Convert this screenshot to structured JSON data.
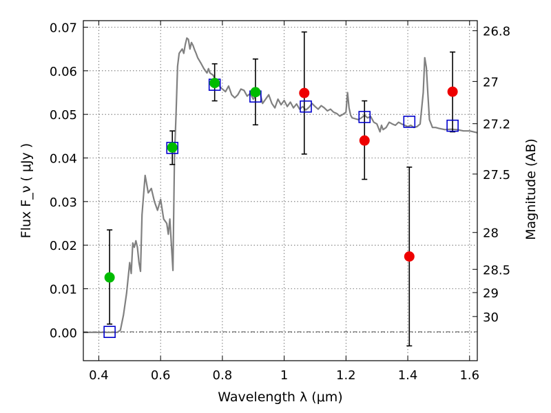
{
  "chart_data": {
    "type": "scatter",
    "xlabel": "Wavelength  λ (μm)",
    "ylabel": "Flux  F_ν  ( μJy )",
    "ylabel_right": "Magnitude (AB)",
    "xlim": [
      0.35,
      1.625
    ],
    "ylim": [
      -0.0065,
      0.0715
    ],
    "grid": true,
    "x_ticks": [
      {
        "value": 0.4,
        "label": "0.4"
      },
      {
        "value": 0.6,
        "label": "0.6"
      },
      {
        "value": 0.8,
        "label": "0.8"
      },
      {
        "value": 1.0,
        "label": "1"
      },
      {
        "value": 1.2,
        "label": "1.2"
      },
      {
        "value": 1.4,
        "label": "1.4"
      },
      {
        "value": 1.6,
        "label": "1.6"
      }
    ],
    "y_ticks": [
      {
        "value": 0.0,
        "label": "0.00"
      },
      {
        "value": 0.01,
        "label": "0.01"
      },
      {
        "value": 0.02,
        "label": "0.02"
      },
      {
        "value": 0.03,
        "label": "0.03"
      },
      {
        "value": 0.04,
        "label": "0.04"
      },
      {
        "value": 0.05,
        "label": "0.05"
      },
      {
        "value": 0.06,
        "label": "0.06"
      },
      {
        "value": 0.07,
        "label": "0.07"
      }
    ],
    "magnitude_ticks": [
      {
        "mag": 26.8,
        "label": "26.8"
      },
      {
        "mag": 27.0,
        "label": "27"
      },
      {
        "mag": 27.2,
        "label": "27.2"
      },
      {
        "mag": 27.5,
        "label": "27.5"
      },
      {
        "mag": 28.0,
        "label": "28"
      },
      {
        "mag": 28.5,
        "label": "28.5"
      },
      {
        "mag": 29.0,
        "label": "29"
      },
      {
        "mag": 30.0,
        "label": "30"
      }
    ],
    "model_spectrum": {
      "color": "#808080",
      "points": [
        [
          0.35,
          0.0
        ],
        [
          0.4,
          0.0
        ],
        [
          0.45,
          0.0
        ],
        [
          0.46,
          0.0
        ],
        [
          0.47,
          0.0005
        ],
        [
          0.48,
          0.004
        ],
        [
          0.49,
          0.009
        ],
        [
          0.5,
          0.016
        ],
        [
          0.505,
          0.0135
        ],
        [
          0.51,
          0.0205
        ],
        [
          0.515,
          0.0195
        ],
        [
          0.52,
          0.021
        ],
        [
          0.525,
          0.0195
        ],
        [
          0.53,
          0.016
        ],
        [
          0.535,
          0.014
        ],
        [
          0.54,
          0.027
        ],
        [
          0.55,
          0.036
        ],
        [
          0.555,
          0.034
        ],
        [
          0.56,
          0.032
        ],
        [
          0.57,
          0.033
        ],
        [
          0.58,
          0.03
        ],
        [
          0.59,
          0.028
        ],
        [
          0.6,
          0.0305
        ],
        [
          0.61,
          0.026
        ],
        [
          0.62,
          0.025
        ],
        [
          0.625,
          0.0225
        ],
        [
          0.63,
          0.026
        ],
        [
          0.635,
          0.02
        ],
        [
          0.64,
          0.0142
        ],
        [
          0.645,
          0.04
        ],
        [
          0.65,
          0.05
        ],
        [
          0.655,
          0.061
        ],
        [
          0.66,
          0.064
        ],
        [
          0.665,
          0.0645
        ],
        [
          0.67,
          0.065
        ],
        [
          0.675,
          0.064
        ],
        [
          0.68,
          0.066
        ],
        [
          0.685,
          0.0675
        ],
        [
          0.69,
          0.0672
        ],
        [
          0.695,
          0.065
        ],
        [
          0.7,
          0.0665
        ],
        [
          0.705,
          0.0658
        ],
        [
          0.71,
          0.0648
        ],
        [
          0.715,
          0.064
        ],
        [
          0.72,
          0.063
        ],
        [
          0.73,
          0.0618
        ],
        [
          0.74,
          0.0605
        ],
        [
          0.75,
          0.0595
        ],
        [
          0.755,
          0.0605
        ],
        [
          0.76,
          0.0595
        ],
        [
          0.77,
          0.059
        ],
        [
          0.78,
          0.0575
        ],
        [
          0.79,
          0.0565
        ],
        [
          0.8,
          0.0558
        ],
        [
          0.81,
          0.0552
        ],
        [
          0.82,
          0.0565
        ],
        [
          0.83,
          0.0545
        ],
        [
          0.84,
          0.0538
        ],
        [
          0.85,
          0.0545
        ],
        [
          0.86,
          0.0558
        ],
        [
          0.87,
          0.0555
        ],
        [
          0.88,
          0.0542
        ],
        [
          0.89,
          0.0548
        ],
        [
          0.9,
          0.0535
        ],
        [
          0.91,
          0.0545
        ],
        [
          0.92,
          0.0555
        ],
        [
          0.93,
          0.0525
        ],
        [
          0.94,
          0.0535
        ],
        [
          0.95,
          0.0545
        ],
        [
          0.96,
          0.0525
        ],
        [
          0.97,
          0.0515
        ],
        [
          0.98,
          0.0535
        ],
        [
          0.99,
          0.0522
        ],
        [
          1.0,
          0.0532
        ],
        [
          1.01,
          0.0518
        ],
        [
          1.02,
          0.0528
        ],
        [
          1.03,
          0.0515
        ],
        [
          1.04,
          0.0524
        ],
        [
          1.05,
          0.0512
        ],
        [
          1.06,
          0.0518
        ],
        [
          1.07,
          0.051
        ],
        [
          1.08,
          0.0516
        ],
        [
          1.09,
          0.0525
        ],
        [
          1.1,
          0.0518
        ],
        [
          1.11,
          0.0512
        ],
        [
          1.12,
          0.052
        ],
        [
          1.13,
          0.0515
        ],
        [
          1.14,
          0.0508
        ],
        [
          1.15,
          0.0512
        ],
        [
          1.16,
          0.0505
        ],
        [
          1.17,
          0.0502
        ],
        [
          1.18,
          0.0496
        ],
        [
          1.19,
          0.05
        ],
        [
          1.2,
          0.0505
        ],
        [
          1.205,
          0.055
        ],
        [
          1.21,
          0.0515
        ],
        [
          1.215,
          0.0498
        ],
        [
          1.22,
          0.0492
        ],
        [
          1.23,
          0.049
        ],
        [
          1.24,
          0.0488
        ],
        [
          1.25,
          0.0492
        ],
        [
          1.26,
          0.0498
        ],
        [
          1.27,
          0.0492
        ],
        [
          1.28,
          0.0495
        ],
        [
          1.29,
          0.0482
        ],
        [
          1.3,
          0.0478
        ],
        [
          1.31,
          0.046
        ],
        [
          1.315,
          0.0475
        ],
        [
          1.32,
          0.0465
        ],
        [
          1.33,
          0.047
        ],
        [
          1.34,
          0.0482
        ],
        [
          1.35,
          0.0478
        ],
        [
          1.36,
          0.0475
        ],
        [
          1.37,
          0.0482
        ],
        [
          1.38,
          0.0478
        ],
        [
          1.39,
          0.0475
        ],
        [
          1.4,
          0.0472
        ],
        [
          1.41,
          0.0475
        ],
        [
          1.42,
          0.047
        ],
        [
          1.43,
          0.0472
        ],
        [
          1.44,
          0.0478
        ],
        [
          1.45,
          0.055
        ],
        [
          1.455,
          0.063
        ],
        [
          1.46,
          0.0608
        ],
        [
          1.465,
          0.0548
        ],
        [
          1.47,
          0.0488
        ],
        [
          1.48,
          0.047
        ],
        [
          1.49,
          0.047
        ],
        [
          1.5,
          0.0468
        ],
        [
          1.52,
          0.0465
        ],
        [
          1.54,
          0.0466
        ],
        [
          1.56,
          0.0465
        ],
        [
          1.58,
          0.0462
        ],
        [
          1.6,
          0.0462
        ],
        [
          1.625,
          0.0458
        ]
      ]
    },
    "model_photometry": {
      "marker": "square",
      "color": "#0000cc",
      "x": [
        0.435,
        0.638,
        0.775,
        0.907,
        1.07,
        1.26,
        1.405,
        1.545
      ],
      "y": [
        0.0001,
        0.0423,
        0.0568,
        0.0541,
        0.0518,
        0.0494,
        0.0483,
        0.0474
      ]
    },
    "observed_photometry": [
      {
        "x": 0.435,
        "y": 0.0126,
        "y_low": 0.0019,
        "y_high": 0.0235,
        "color": "#00bb00"
      },
      {
        "x": 0.638,
        "y": 0.0424,
        "y_low": 0.0385,
        "y_high": 0.0462,
        "color": "#00bb00"
      },
      {
        "x": 0.775,
        "y": 0.0572,
        "y_low": 0.0531,
        "y_high": 0.0616,
        "color": "#00bb00"
      },
      {
        "x": 0.907,
        "y": 0.0551,
        "y_low": 0.0476,
        "y_high": 0.0627,
        "color": "#00bb00"
      },
      {
        "x": 1.065,
        "y": 0.0549,
        "y_low": 0.0409,
        "y_high": 0.0689,
        "color": "#ee0000"
      },
      {
        "x": 1.26,
        "y": 0.044,
        "y_low": 0.0351,
        "y_high": 0.0531,
        "color": "#ee0000"
      },
      {
        "x": 1.405,
        "y": 0.0174,
        "y_low": -0.0031,
        "y_high": 0.0379,
        "color": "#ee0000"
      },
      {
        "x": 1.545,
        "y": 0.0552,
        "y_low": 0.046,
        "y_high": 0.0643,
        "color": "#ee0000"
      }
    ]
  }
}
